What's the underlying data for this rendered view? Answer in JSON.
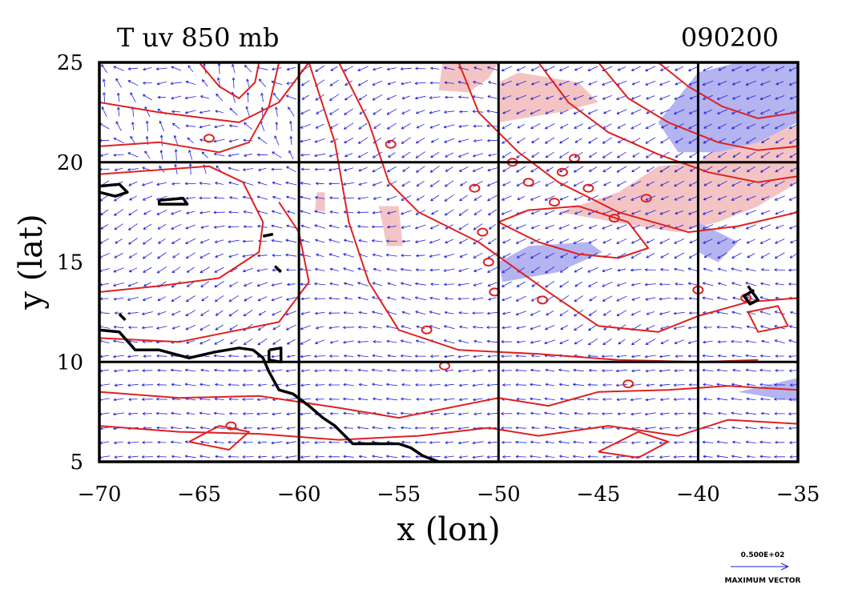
{
  "chart_data": {
    "type": "contour",
    "title": "T uv 850 mb",
    "date_label": "090200",
    "xlabel": "x (lon)",
    "ylabel": "y (lat)",
    "xlim": [
      -70,
      -35
    ],
    "ylim": [
      5,
      25
    ],
    "x_ticks": [
      -70,
      -65,
      -60,
      -55,
      -50,
      -45,
      -40,
      -35
    ],
    "x_tick_labels": [
      "−70",
      "−65",
      "−60",
      "−55",
      "−50",
      "−45",
      "−40",
      "−35"
    ],
    "y_ticks": [
      5,
      10,
      15,
      20,
      25
    ],
    "y_tick_labels": [
      "5",
      "10",
      "15",
      "20",
      "25"
    ],
    "grid_lines_x": [
      -60,
      -50,
      -40
    ],
    "grid_lines_y": [
      10,
      20
    ],
    "vector_legend": {
      "value_label": "0.500E+02",
      "caption": "MAXIMUM VECTOR"
    },
    "colors": {
      "contour": "#e02020",
      "warm_fill": "#f4c4c4",
      "cold_fill": "#b4b4f0",
      "vectors": "#2020d8",
      "coast": "#000000"
    },
    "warm_regions": [
      [
        [
          -51.5,
          23.5
        ],
        [
          -50.5,
          24.2
        ],
        [
          -50,
          25
        ],
        [
          -52.8,
          25
        ],
        [
          -53,
          23.6
        ]
      ],
      [
        [
          -56,
          17.8
        ],
        [
          -55,
          17.8
        ],
        [
          -54.8,
          15.8
        ],
        [
          -55.6,
          15.8
        ]
      ],
      [
        [
          -59.2,
          17.6
        ],
        [
          -58.7,
          17.5
        ],
        [
          -58.7,
          18.5
        ],
        [
          -59.1,
          18.5
        ]
      ],
      [
        [
          -47,
          17.5
        ],
        [
          -44,
          18.5
        ],
        [
          -42,
          19.8
        ],
        [
          -40,
          20
        ],
        [
          -38,
          21.5
        ],
        [
          -35,
          21.8
        ],
        [
          -35,
          19
        ],
        [
          -37,
          17.8
        ],
        [
          -39,
          17
        ],
        [
          -41,
          16.5
        ],
        [
          -43,
          16.8
        ]
      ],
      [
        [
          -50,
          22
        ],
        [
          -47,
          22.5
        ],
        [
          -45,
          23
        ],
        [
          -46,
          24
        ],
        [
          -49,
          24.5
        ],
        [
          -50,
          24
        ]
      ]
    ],
    "cold_regions": [
      [
        [
          -42,
          22
        ],
        [
          -40,
          24.5
        ],
        [
          -38,
          25
        ],
        [
          -35,
          25
        ],
        [
          -35,
          22
        ],
        [
          -37,
          21
        ],
        [
          -39,
          20.5
        ],
        [
          -41,
          20.5
        ]
      ],
      [
        [
          -49.8,
          14
        ],
        [
          -47,
          14.5
        ],
        [
          -44.8,
          15.5
        ],
        [
          -45.5,
          16
        ],
        [
          -48.5,
          15.8
        ],
        [
          -50,
          15
        ]
      ],
      [
        [
          -40,
          15.5
        ],
        [
          -39,
          15
        ],
        [
          -38,
          16
        ],
        [
          -40,
          17
        ]
      ],
      [
        [
          -38,
          8.5
        ],
        [
          -35,
          9.2
        ],
        [
          -35,
          8
        ]
      ]
    ],
    "contours": [
      [
        [
          -70,
          23
        ],
        [
          -67,
          22.5
        ],
        [
          -63,
          22
        ],
        [
          -61,
          23
        ],
        [
          -59.5,
          25
        ]
      ],
      [
        [
          -70,
          20.8
        ],
        [
          -67,
          21
        ],
        [
          -64,
          20.5
        ],
        [
          -62.5,
          21
        ],
        [
          -61.5,
          22.8
        ],
        [
          -61,
          25
        ]
      ],
      [
        [
          -65,
          25
        ],
        [
          -64,
          23.8
        ],
        [
          -63,
          23.2
        ],
        [
          -62.2,
          24
        ],
        [
          -62,
          25
        ]
      ],
      [
        [
          -58,
          25
        ],
        [
          -56.5,
          22
        ],
        [
          -55.5,
          19
        ],
        [
          -54,
          17.5
        ],
        [
          -51,
          16
        ],
        [
          -47.5,
          13.5
        ],
        [
          -45,
          11.8
        ],
        [
          -42,
          11.5
        ],
        [
          -40,
          12.3
        ],
        [
          -37.5,
          13
        ],
        [
          -35,
          13.2
        ]
      ],
      [
        [
          -59.5,
          25
        ],
        [
          -58.2,
          21
        ],
        [
          -57.5,
          17
        ],
        [
          -56.5,
          14
        ],
        [
          -55,
          11.6
        ],
        [
          -52,
          10.6
        ],
        [
          -48,
          10.4
        ],
        [
          -44,
          10.1
        ],
        [
          -40,
          10
        ],
        [
          -37,
          10.1
        ]
      ],
      [
        [
          -61,
          18
        ],
        [
          -60,
          16.5
        ],
        [
          -59.5,
          14
        ],
        [
          -61,
          12
        ],
        [
          -63.5,
          11.5
        ],
        [
          -66,
          11
        ],
        [
          -70,
          11.2
        ]
      ],
      [
        [
          -70,
          13.5
        ],
        [
          -67,
          13.8
        ],
        [
          -64,
          14.2
        ],
        [
          -62,
          15.5
        ],
        [
          -61.8,
          17
        ],
        [
          -62.8,
          19
        ],
        [
          -64.5,
          19.8
        ],
        [
          -70,
          19.4
        ]
      ],
      [
        [
          -70,
          8.5
        ],
        [
          -66,
          8.2
        ],
        [
          -62,
          8.3
        ],
        [
          -58,
          7.7
        ],
        [
          -55,
          7.2
        ],
        [
          -52,
          7.8
        ],
        [
          -50,
          8.2
        ],
        [
          -47.5,
          7.8
        ],
        [
          -45,
          8.5
        ],
        [
          -41.5,
          8.6
        ],
        [
          -38.5,
          8.8
        ],
        [
          -35,
          8.6
        ]
      ],
      [
        [
          -70,
          6.8
        ],
        [
          -66,
          6.5
        ],
        [
          -62,
          6.4
        ],
        [
          -58,
          6.1
        ],
        [
          -54,
          6.3
        ],
        [
          -50.5,
          6.7
        ],
        [
          -48,
          6.3
        ],
        [
          -44.5,
          6.8
        ],
        [
          -41,
          6.3
        ],
        [
          -38.5,
          7.1
        ],
        [
          -35,
          6.9
        ]
      ],
      [
        [
          -52,
          25
        ],
        [
          -51,
          22.5
        ],
        [
          -49,
          20.5
        ],
        [
          -47,
          19
        ],
        [
          -44,
          17.5
        ],
        [
          -40.5,
          16.5
        ],
        [
          -38,
          16.8
        ],
        [
          -35,
          17.5
        ]
      ],
      [
        [
          -48,
          25
        ],
        [
          -46.5,
          23
        ],
        [
          -44.5,
          21.5
        ],
        [
          -42,
          20.4
        ],
        [
          -39.5,
          19.5
        ],
        [
          -37,
          19
        ],
        [
          -35,
          19.3
        ]
      ],
      [
        [
          -45,
          25
        ],
        [
          -43.5,
          23.2
        ],
        [
          -41.5,
          22
        ],
        [
          -39,
          21
        ],
        [
          -37,
          20.6
        ],
        [
          -35,
          20.8
        ]
      ],
      [
        [
          -42,
          25
        ],
        [
          -40.5,
          23.8
        ],
        [
          -38.8,
          22.8
        ],
        [
          -37,
          22.2
        ],
        [
          -35,
          22.5
        ]
      ],
      [
        [
          -50,
          17
        ],
        [
          -48,
          16
        ],
        [
          -46,
          15.4
        ],
        [
          -44,
          15.2
        ],
        [
          -42.5,
          15.7
        ],
        [
          -43.5,
          17
        ],
        [
          -46,
          17.8
        ],
        [
          -48.5,
          17.6
        ],
        [
          -50,
          17
        ]
      ],
      [
        [
          -65.5,
          6
        ],
        [
          -64,
          6.8
        ],
        [
          -62.5,
          6.5
        ],
        [
          -63.5,
          5.6
        ],
        [
          -65.5,
          6
        ]
      ],
      [
        [
          -45,
          5.5
        ],
        [
          -43,
          6.5
        ],
        [
          -41.5,
          6
        ],
        [
          -43,
          5.2
        ],
        [
          -45,
          5.5
        ]
      ],
      [
        [
          -37.5,
          12.5
        ],
        [
          -36,
          12.8
        ],
        [
          -35.5,
          11.8
        ],
        [
          -37,
          11.5
        ],
        [
          -37.5,
          12.5
        ]
      ]
    ],
    "contour_rings": [
      [
        -49.3,
        20
      ],
      [
        -50.5,
        15
      ],
      [
        -46.8,
        19.5
      ],
      [
        -45.5,
        18.7
      ],
      [
        -48.5,
        19
      ],
      [
        -47.2,
        18
      ],
      [
        -51.2,
        18.7
      ],
      [
        -50.8,
        16.5
      ],
      [
        -42.6,
        18.2
      ],
      [
        -44.2,
        17.2
      ],
      [
        -64.5,
        21.2
      ],
      [
        -55.4,
        20.9
      ],
      [
        -46.2,
        20.2
      ],
      [
        -37.6,
        13.2
      ],
      [
        -47.8,
        13.1
      ],
      [
        -40,
        13.6
      ],
      [
        -50.2,
        13.5
      ],
      [
        -53.6,
        11.6
      ],
      [
        -52.7,
        9.8
      ],
      [
        -63.4,
        6.8
      ],
      [
        -43.5,
        8.9
      ]
    ],
    "coastlines": [
      [
        [
          -70,
          11.6
        ],
        [
          -69,
          11.5
        ],
        [
          -68.2,
          10.6
        ],
        [
          -67,
          10.6
        ],
        [
          -65.5,
          10.2
        ],
        [
          -64.2,
          10.5
        ],
        [
          -63,
          10.7
        ],
        [
          -62.3,
          10.6
        ],
        [
          -61.8,
          10.2
        ],
        [
          -61.5,
          9.5
        ],
        [
          -61,
          8.6
        ],
        [
          -60.3,
          8.4
        ],
        [
          -59.5,
          7.8
        ],
        [
          -58.8,
          7.2
        ],
        [
          -58.2,
          6.8
        ],
        [
          -57.3,
          5.9
        ],
        [
          -56.3,
          5.9
        ],
        [
          -55,
          5.9
        ],
        [
          -54.4,
          5.7
        ],
        [
          -53.8,
          5.3
        ],
        [
          -53,
          5
        ]
      ],
      [
        [
          -70,
          18.8
        ],
        [
          -69,
          18.9
        ],
        [
          -68.6,
          18.5
        ],
        [
          -69.2,
          18.3
        ],
        [
          -70,
          18.5
        ]
      ],
      [
        [
          -67,
          18.1
        ],
        [
          -65.8,
          18.2
        ],
        [
          -65.6,
          17.9
        ],
        [
          -67,
          17.9
        ],
        [
          -67,
          18.1
        ]
      ],
      [
        [
          -61.5,
          10.6
        ],
        [
          -60.9,
          10.7
        ],
        [
          -60.9,
          10
        ],
        [
          -61.5,
          10.1
        ],
        [
          -61.5,
          10.6
        ]
      ],
      [
        [
          -61.2,
          14.8
        ],
        [
          -60.9,
          14.5
        ]
      ],
      [
        [
          -61.8,
          16.3
        ],
        [
          -61.3,
          16.4
        ]
      ],
      [
        [
          -69,
          12.4
        ],
        [
          -68.7,
          12.1
        ]
      ],
      [
        [
          -37.5,
          13.8
        ],
        [
          -37,
          13.1
        ],
        [
          -37.4,
          12.9
        ],
        [
          -37.7,
          13.3
        ],
        [
          -37.2,
          13.6
        ]
      ]
    ]
  }
}
